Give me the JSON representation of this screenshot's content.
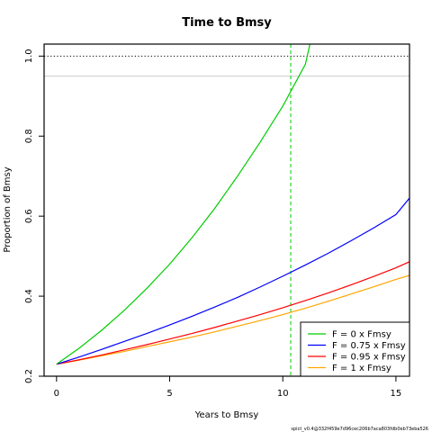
{
  "chart_data": {
    "type": "line",
    "title": "Time to Bmsy",
    "xlabel": "Years to Bmsy",
    "ylabel": "Proportion of Bmsy",
    "xlim": [
      -0.55,
      15.6
    ],
    "ylim": [
      0.2,
      1.03
    ],
    "xticks": [
      0,
      5,
      10,
      15
    ],
    "yticks": [
      0.2,
      0.4,
      0.6,
      0.8,
      1.0
    ],
    "ytick_labels": [
      "0.2",
      "0.4",
      "0.6",
      "0.8",
      "1.0"
    ],
    "hlines": [
      {
        "y": 1.0,
        "style": "dotted",
        "color": "#000000"
      },
      {
        "y": 0.95,
        "style": "solid",
        "color": "#cccccc"
      }
    ],
    "vlines": [
      {
        "x": 10.35,
        "style": "dashed",
        "color": "#00cc00"
      }
    ],
    "series": [
      {
        "name": "F = 0 x Fmsy",
        "color": "#00cc00",
        "x": [
          0,
          1,
          2,
          3,
          4,
          5,
          6,
          7,
          8,
          9,
          10,
          11,
          11.2
        ],
        "y": [
          0.23,
          0.27,
          0.315,
          0.365,
          0.42,
          0.48,
          0.547,
          0.62,
          0.7,
          0.785,
          0.875,
          0.98,
          1.03
        ]
      },
      {
        "name": "F = 0.75 x Fmsy",
        "color": "#0000ff",
        "x": [
          0,
          1,
          2,
          3,
          4,
          5,
          6,
          7,
          8,
          9,
          10,
          11,
          12,
          13,
          14,
          15,
          15.6
        ],
        "y": [
          0.23,
          0.248,
          0.267,
          0.287,
          0.307,
          0.328,
          0.35,
          0.373,
          0.397,
          0.423,
          0.45,
          0.478,
          0.507,
          0.538,
          0.57,
          0.604,
          0.645
        ]
      },
      {
        "name": "F = 0.95 x Fmsy",
        "color": "#ff0000",
        "x": [
          0,
          1,
          2,
          3,
          4,
          5,
          6,
          7,
          8,
          9,
          10,
          11,
          12,
          13,
          14,
          15,
          15.6
        ],
        "y": [
          0.23,
          0.241,
          0.253,
          0.266,
          0.279,
          0.293,
          0.307,
          0.322,
          0.338,
          0.354,
          0.371,
          0.389,
          0.408,
          0.428,
          0.449,
          0.471,
          0.486
        ]
      },
      {
        "name": "F = 1 x Fmsy",
        "color": "#ffa500",
        "x": [
          0,
          1,
          2,
          3,
          4,
          5,
          6,
          7,
          8,
          9,
          10,
          11,
          12,
          13,
          14,
          15,
          15.6
        ],
        "y": [
          0.23,
          0.24,
          0.251,
          0.262,
          0.274,
          0.286,
          0.298,
          0.311,
          0.325,
          0.339,
          0.354,
          0.37,
          0.387,
          0.405,
          0.423,
          0.442,
          0.452
        ]
      }
    ],
    "legend": "bottom-right",
    "footnote": "spict_v0.4@332f459e7d96cec206b7aca803fdb0eb73eba526"
  }
}
